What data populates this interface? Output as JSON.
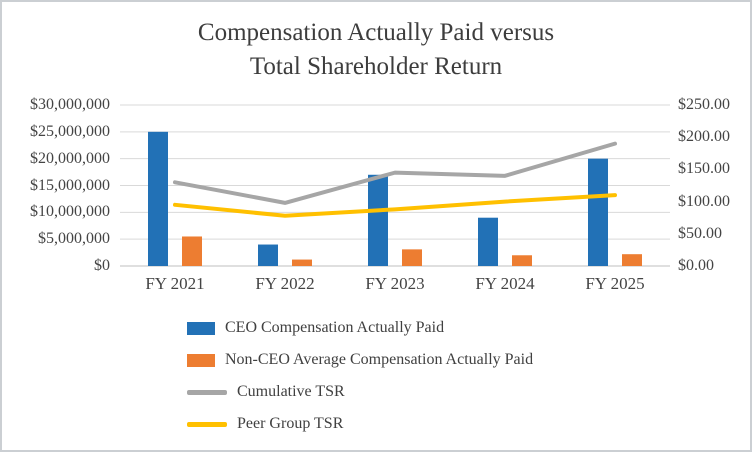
{
  "chart_data": {
    "type": "combo",
    "title": "Compensation Actually Paid versus Total Shareholder Return",
    "title_lines": [
      "Compensation Actually Paid versus",
      "Total Shareholder Return"
    ],
    "categories": [
      "FY 2021",
      "FY 2022",
      "FY 2023",
      "FY 2024",
      "FY 2025"
    ],
    "bar_series": [
      {
        "name": "CEO Compensation Actually Paid",
        "axis": "left",
        "color": "#2271B6",
        "values": [
          25000000,
          4000000,
          17000000,
          9000000,
          20000000
        ]
      },
      {
        "name": "Non-CEO Average Compensation Actually Paid",
        "axis": "left",
        "color": "#ED7D31",
        "values": [
          5500000,
          1200000,
          3100000,
          2000000,
          2200000
        ]
      }
    ],
    "line_series": [
      {
        "name": "Cumulative TSR",
        "axis": "right",
        "color": "#A6A6A6",
        "values": [
          130,
          98,
          145,
          140,
          190
        ]
      },
      {
        "name": "Peer Group TSR",
        "axis": "right",
        "color": "#FFC000",
        "values": [
          95,
          78,
          88,
          100,
          110
        ]
      }
    ],
    "left_axis": {
      "min": 0,
      "max": 30000000,
      "ticks": [
        "$30,000,000",
        "$25,000,000",
        "$20,000,000",
        "$15,000,000",
        "$10,000,000",
        "$5,000,000",
        "$0"
      ]
    },
    "right_axis": {
      "min": 0,
      "max": 250,
      "ticks": [
        "$250.00",
        "$200.00",
        "$150.00",
        "$100.00",
        "$50.00",
        "$0.00"
      ]
    },
    "legend": [
      "CEO Compensation Actually Paid",
      "Non-CEO Average Compensation Actually Paid",
      "Cumulative TSR",
      "Peer Group TSR"
    ],
    "grid": true,
    "legend_position": "bottom-left",
    "colors": {
      "grid": "#D9D9D9",
      "axis_line": "#BFBFBF",
      "text": "#404040"
    }
  }
}
